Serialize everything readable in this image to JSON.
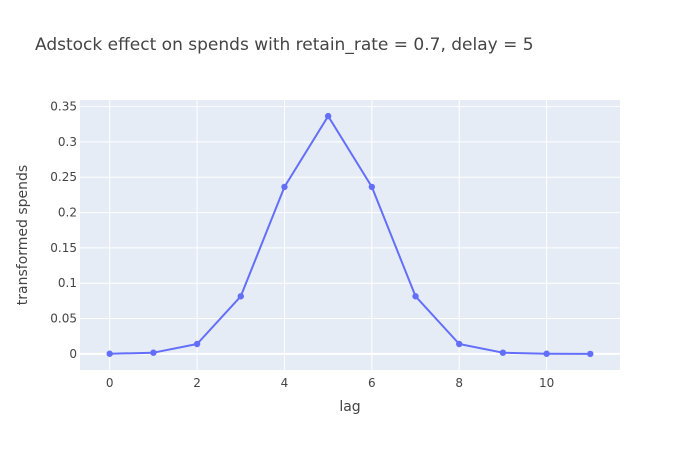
{
  "chart_data": {
    "type": "line",
    "title": "Adstock effect on spends with retain_rate = 0.7, delay = 5",
    "xlabel": "lag",
    "ylabel": "transformed spends",
    "x": [
      0,
      1,
      2,
      3,
      4,
      5,
      6,
      7,
      8,
      9,
      10,
      11
    ],
    "series": [
      {
        "values": [
          0.0002,
          0.0017,
          0.014,
          0.0815,
          0.2363,
          0.3365,
          0.2363,
          0.0815,
          0.014,
          0.0017,
          0.0002,
          0.0
        ]
      }
    ],
    "xlim": [
      -0.68,
      11.68
    ],
    "ylim": [
      -0.0228,
      0.3593
    ],
    "xticks": [
      0,
      2,
      4,
      6,
      8,
      10
    ],
    "xtick_labels": [
      "0",
      "2",
      "4",
      "6",
      "8",
      "10"
    ],
    "yticks": [
      0,
      0.05,
      0.1,
      0.15,
      0.2,
      0.25,
      0.3,
      0.35
    ],
    "ytick_labels": [
      "0",
      "0.05",
      "0.1",
      "0.15",
      "0.2",
      "0.25",
      "0.3",
      "0.35"
    ],
    "grid": true,
    "colors": {
      "line": "#636efa",
      "plot_bg": "#e5ecf6",
      "grid": "#ffffff",
      "text": "#444444"
    }
  }
}
